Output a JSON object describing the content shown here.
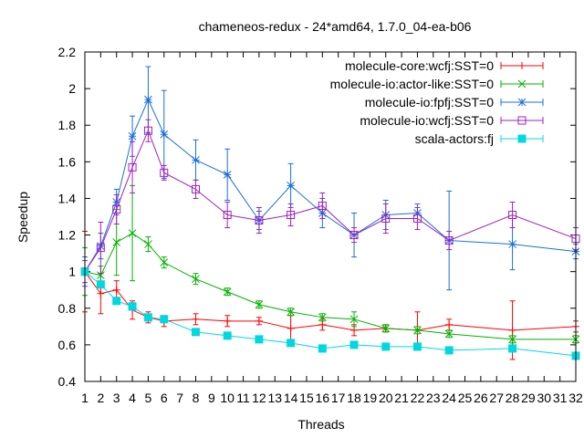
{
  "chart_data": {
    "type": "line",
    "title": "chameneos-redux - 24*amd64, 1.7.0_04-ea-b06",
    "xlabel": "Threads",
    "ylabel": "Speedup",
    "xlim": [
      1,
      32
    ],
    "ylim": [
      0.4,
      2.2
    ],
    "x_ticks": [
      1,
      2,
      3,
      4,
      5,
      6,
      7,
      8,
      9,
      10,
      11,
      12,
      13,
      14,
      15,
      16,
      17,
      18,
      19,
      20,
      21,
      22,
      23,
      24,
      25,
      26,
      27,
      28,
      29,
      30,
      31,
      32
    ],
    "x_tick_labels": [
      "1",
      "2",
      "3",
      "4",
      "5",
      "6",
      "7",
      "8",
      "9",
      "10",
      "11",
      "12",
      "13",
      "14",
      "15",
      "16",
      "17",
      "18",
      "19",
      "20",
      "21",
      "22",
      "23",
      "24",
      "25",
      "26",
      "27",
      "28",
      "29",
      "30",
      "31",
      "32"
    ],
    "y_ticks": [
      0.4,
      0.6,
      0.8,
      1,
      1.2,
      1.4,
      1.6,
      1.8,
      2,
      2.2
    ],
    "y_tick_labels": [
      "0.4",
      "0.6",
      "0.8",
      "1",
      "1.2",
      "1.4",
      "1.6",
      "1.8",
      "2",
      "2.2"
    ],
    "legend_position": "top-right",
    "grid": false,
    "series": [
      {
        "name": "molecule-core:wcfj:SST=0",
        "color": "#ff0000",
        "marker": "plus",
        "x": [
          1,
          2,
          3,
          4,
          5,
          6,
          8,
          10,
          12,
          14,
          16,
          18,
          20,
          22,
          24,
          28,
          32
        ],
        "y": [
          1.0,
          0.88,
          0.9,
          0.79,
          0.75,
          0.73,
          0.74,
          0.73,
          0.73,
          0.69,
          0.71,
          0.68,
          0.69,
          0.68,
          0.71,
          0.68,
          0.7
        ],
        "err": [
          0.22,
          0.11,
          0.05,
          0.05,
          0.03,
          0.03,
          0.03,
          0.03,
          0.02,
          0.07,
          0.03,
          0.03,
          0.02,
          0.1,
          0.03,
          0.16,
          0.03
        ]
      },
      {
        "name": "molecule-io:actor-like:SST=0",
        "color": "#00b000",
        "marker": "x",
        "x": [
          1,
          2,
          3,
          4,
          5,
          6,
          8,
          10,
          12,
          14,
          16,
          18,
          20,
          22,
          24,
          28,
          32
        ],
        "y": [
          1.0,
          0.98,
          1.16,
          1.21,
          1.15,
          1.05,
          0.96,
          0.89,
          0.82,
          0.78,
          0.75,
          0.74,
          0.69,
          0.68,
          0.66,
          0.63,
          0.63
        ],
        "err": [
          0.13,
          0.05,
          0.18,
          0.26,
          0.04,
          0.03,
          0.03,
          0.02,
          0.02,
          0.02,
          0.02,
          0.04,
          0.02,
          0.02,
          0.02,
          0.02,
          0.02
        ]
      },
      {
        "name": "molecule-io:fpfj:SST=0",
        "color": "#1a6fd8",
        "marker": "star",
        "x": [
          1,
          2,
          3,
          4,
          5,
          6,
          8,
          10,
          12,
          14,
          16,
          18,
          20,
          22,
          24,
          28,
          32
        ],
        "y": [
          1.0,
          1.14,
          1.38,
          1.74,
          1.94,
          1.75,
          1.61,
          1.53,
          1.28,
          1.47,
          1.32,
          1.2,
          1.31,
          1.32,
          1.17,
          1.15,
          1.11
        ],
        "err": [
          0.08,
          0.07,
          0.07,
          0.11,
          0.18,
          0.24,
          0.11,
          0.14,
          0.05,
          0.12,
          0.08,
          0.12,
          0.08,
          0.05,
          0.27,
          0.14,
          0.04
        ]
      },
      {
        "name": "molecule-io:wcfj:SST=0",
        "color": "#a020c0",
        "marker": "square",
        "x": [
          1,
          2,
          3,
          4,
          5,
          6,
          8,
          10,
          12,
          14,
          16,
          18,
          20,
          22,
          24,
          28,
          32
        ],
        "y": [
          1.0,
          1.13,
          1.34,
          1.57,
          1.77,
          1.54,
          1.45,
          1.31,
          1.28,
          1.31,
          1.36,
          1.2,
          1.29,
          1.29,
          1.17,
          1.31,
          1.18
        ],
        "err": [
          0.06,
          0.14,
          0.08,
          0.14,
          0.06,
          0.04,
          0.05,
          0.07,
          0.07,
          0.06,
          0.07,
          0.04,
          0.08,
          0.06,
          0.05,
          0.07,
          0.06
        ]
      },
      {
        "name": "scala-actors:fj",
        "color": "#00d8e0",
        "marker": "filled-square",
        "x": [
          1,
          2,
          3,
          4,
          5,
          6,
          8,
          10,
          12,
          14,
          16,
          18,
          20,
          22,
          24,
          28,
          32
        ],
        "y": [
          1.0,
          0.93,
          0.84,
          0.81,
          0.75,
          0.74,
          0.67,
          0.65,
          0.63,
          0.61,
          0.58,
          0.6,
          0.59,
          0.59,
          0.57,
          0.58,
          0.54
        ],
        "err": [
          0,
          0,
          0.01,
          0.02,
          0.01,
          0.01,
          0.01,
          0.01,
          0.01,
          0.01,
          0.01,
          0.01,
          0.01,
          0.02,
          0.01,
          0.01,
          0.01
        ]
      }
    ]
  }
}
